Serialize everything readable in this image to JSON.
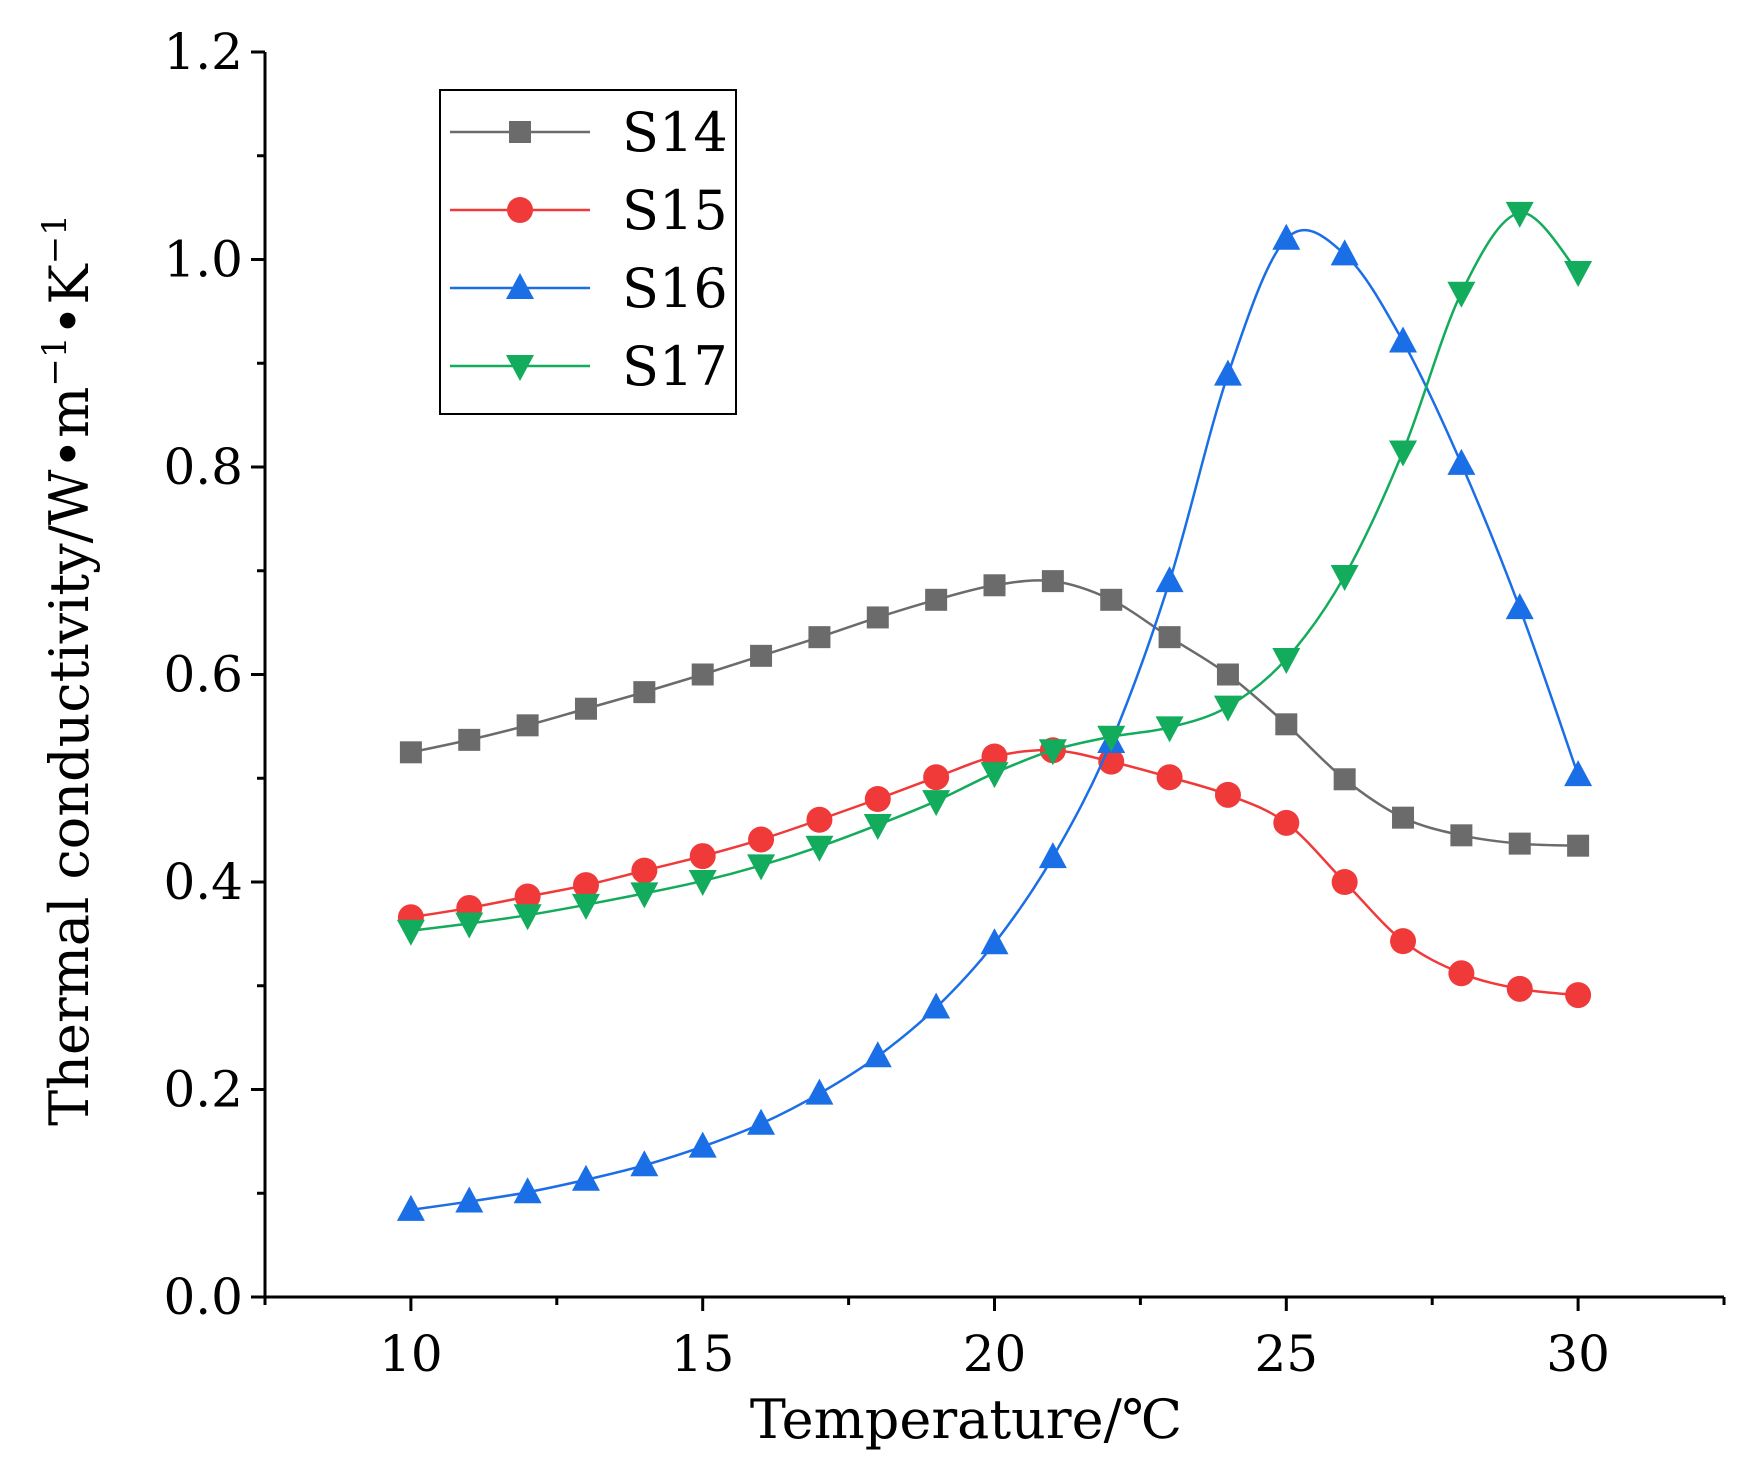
{
  "chart_data": {
    "type": "line",
    "title": "",
    "xlabel": "Temperature/℃",
    "ylabel": "Thermal conductivity/W•m",
    "ylabel_parts": {
      "text1": "Thermal conductivity/W•m",
      "sup1": "−1",
      "text2": "•K",
      "sup2": "−1"
    },
    "xlim": [
      7.5,
      32.5
    ],
    "ylim": [
      0.0,
      1.2
    ],
    "x_ticks": [
      10,
      15,
      20,
      25,
      30
    ],
    "x_tick_labels": [
      "10",
      "15",
      "20",
      "25",
      "30"
    ],
    "y_ticks": [
      0.0,
      0.2,
      0.4,
      0.6,
      0.8,
      1.0,
      1.2
    ],
    "y_tick_labels": [
      "0.0",
      "0.2",
      "0.4",
      "0.6",
      "0.8",
      "1.0",
      "1.2"
    ],
    "grid": false,
    "legend_position": "top-left",
    "x": [
      10,
      11,
      12,
      13,
      14,
      15,
      16,
      17,
      18,
      19,
      20,
      21,
      22,
      23,
      24,
      25,
      26,
      27,
      28,
      29,
      30
    ],
    "series": [
      {
        "name": "S14",
        "color": "#6b6b6b",
        "marker": "square",
        "values": [
          0.525,
          0.537,
          0.551,
          0.567,
          0.583,
          0.6,
          0.618,
          0.636,
          0.655,
          0.672,
          0.686,
          0.69,
          0.672,
          0.636,
          0.6,
          0.552,
          0.499,
          0.462,
          0.445,
          0.437,
          0.435
        ]
      },
      {
        "name": "S15",
        "color": "#f03a3a",
        "marker": "circle",
        "values": [
          0.366,
          0.375,
          0.386,
          0.397,
          0.411,
          0.425,
          0.441,
          0.46,
          0.48,
          0.501,
          0.521,
          0.527,
          0.516,
          0.501,
          0.484,
          0.457,
          0.4,
          0.343,
          0.312,
          0.297,
          0.291
        ]
      },
      {
        "name": "S16",
        "color": "#1a6ee6",
        "marker": "triangle-up",
        "values": [
          0.084,
          0.092,
          0.101,
          0.113,
          0.127,
          0.145,
          0.167,
          0.196,
          0.232,
          0.279,
          0.341,
          0.424,
          0.535,
          0.69,
          0.889,
          1.02,
          1.005,
          0.921,
          0.803,
          0.664,
          0.503
        ]
      },
      {
        "name": "S17",
        "color": "#13ab5c",
        "marker": "triangle-down",
        "values": [
          0.353,
          0.36,
          0.368,
          0.378,
          0.389,
          0.401,
          0.416,
          0.434,
          0.455,
          0.478,
          0.505,
          0.527,
          0.54,
          0.549,
          0.569,
          0.615,
          0.695,
          0.815,
          0.968,
          1.045,
          0.988
        ]
      }
    ]
  }
}
